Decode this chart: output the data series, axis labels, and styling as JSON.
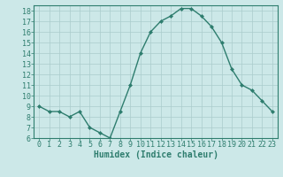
{
  "x": [
    0,
    1,
    2,
    3,
    4,
    5,
    6,
    7,
    8,
    9,
    10,
    11,
    12,
    13,
    14,
    15,
    16,
    17,
    18,
    19,
    20,
    21,
    22,
    23
  ],
  "y": [
    9,
    8.5,
    8.5,
    8,
    8.5,
    7,
    6.5,
    6,
    8.5,
    11,
    14,
    16,
    17,
    17.5,
    18.2,
    18.2,
    17.5,
    16.5,
    15,
    12.5,
    11,
    10.5,
    9.5,
    8.5
  ],
  "line_color": "#2e7d6e",
  "marker": "D",
  "marker_size": 2,
  "bg_color": "#cce8e8",
  "grid_color": "#aacccc",
  "xlabel": "Humidex (Indice chaleur)",
  "ylim": [
    6,
    18.5
  ],
  "xlim": [
    -0.5,
    23.5
  ],
  "yticks": [
    6,
    7,
    8,
    9,
    10,
    11,
    12,
    13,
    14,
    15,
    16,
    17,
    18
  ],
  "xticks": [
    0,
    1,
    2,
    3,
    4,
    5,
    6,
    7,
    8,
    9,
    10,
    11,
    12,
    13,
    14,
    15,
    16,
    17,
    18,
    19,
    20,
    21,
    22,
    23
  ],
  "xlabel_fontsize": 7,
  "tick_fontsize": 6,
  "tick_color": "#2e7d6e"
}
